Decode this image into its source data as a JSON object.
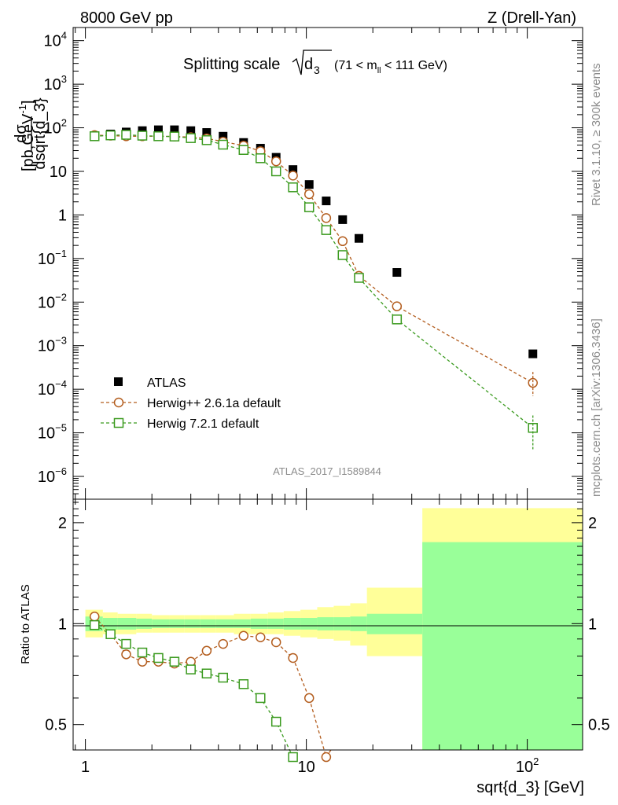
{
  "header": {
    "left": "8000 GeV pp",
    "right": "Z (Drell-Yan)"
  },
  "side_text": {
    "rivet": "Rivet 3.1.10, ≥ 300k events",
    "mcplots": "mcplots.cern.ch [arXiv:1306.3436]"
  },
  "chart_data": {
    "type": "scatter",
    "title": "Splitting scale √d₃ (71 < m_ll < 111 GeV)",
    "title_parts": {
      "main": "Splitting scale",
      "symbol": "d",
      "subscript": "3",
      "range": "(71 < m",
      "range_sub": "ll",
      "range_end": " < 111 GeV)"
    },
    "analysis_id": "ATLAS_2017_I1589844",
    "xlabel": "sqrt{d_3} [GeV]",
    "ylabel": "dσ / dsqrt{d_3} [pb,GeV⁻¹]",
    "ylabel_parts": {
      "num": "dσ",
      "den": "dsqrt{d_3}",
      "unit": "[pb,GeV",
      "unit_sup": "-1",
      "unit_end": "]"
    },
    "ratio_ylabel": "Ratio to ATLAS",
    "x_scale": "log",
    "xlim": [
      0.88,
      178
    ],
    "ylim": [
      3e-07,
      20000.0
    ],
    "ratio_ylim": [
      0.42,
      2.35
    ],
    "x_ticks": [
      {
        "value": 1,
        "label": "1"
      },
      {
        "value": 10,
        "label": "10"
      },
      {
        "value": 100,
        "label": "10",
        "sup": "2"
      }
    ],
    "y_ticks": [
      {
        "value": 1e-06,
        "label": "10",
        "sup": "−6"
      },
      {
        "value": 1e-05,
        "label": "10",
        "sup": "−5"
      },
      {
        "value": 0.0001,
        "label": "10",
        "sup": "−4"
      },
      {
        "value": 0.001,
        "label": "10",
        "sup": "−3"
      },
      {
        "value": 0.01,
        "label": "10",
        "sup": "−2"
      },
      {
        "value": 0.1,
        "label": "10",
        "sup": "−1"
      },
      {
        "value": 1,
        "label": "1"
      },
      {
        "value": 10,
        "label": "10"
      },
      {
        "value": 100,
        "label": "10",
        "sup": "2"
      },
      {
        "value": 1000,
        "label": "10",
        "sup": "3"
      },
      {
        "value": 10000,
        "label": "10",
        "sup": "4"
      }
    ],
    "ratio_ticks": [
      {
        "value": 0.5,
        "label": "0.5"
      },
      {
        "value": 1,
        "label": "1"
      },
      {
        "value": 2,
        "label": "2"
      }
    ],
    "legend": {
      "placement": "lower-left"
    },
    "series": [
      {
        "name": "ATLAS",
        "marker": "filled-square",
        "color": "#000000",
        "x": [
          1.1,
          1.3,
          1.53,
          1.81,
          2.14,
          2.53,
          3.0,
          3.54,
          4.2,
          5.2,
          6.2,
          7.3,
          8.7,
          10.3,
          12.3,
          14.6,
          17.3,
          25.7,
          106
        ],
        "y": [
          66,
          72,
          80,
          86,
          90,
          90,
          86,
          78,
          64,
          46,
          34,
          21,
          11,
          5.0,
          2.1,
          0.78,
          0.29,
          0.048,
          0.00065
        ],
        "ratio_band": [
          {
            "x0": 1.0,
            "x1": 1.2,
            "inner_lo": 0.95,
            "inner_hi": 1.05,
            "outer_lo": 0.91,
            "outer_hi": 1.1
          },
          {
            "x0": 1.2,
            "x1": 1.4,
            "inner_lo": 0.96,
            "inner_hi": 1.04,
            "outer_lo": 0.93,
            "outer_hi": 1.08
          },
          {
            "x0": 1.4,
            "x1": 1.7,
            "inner_lo": 0.96,
            "inner_hi": 1.04,
            "outer_lo": 0.93,
            "outer_hi": 1.07
          },
          {
            "x0": 1.7,
            "x1": 2.0,
            "inner_lo": 0.965,
            "inner_hi": 1.035,
            "outer_lo": 0.94,
            "outer_hi": 1.07
          },
          {
            "x0": 2.0,
            "x1": 2.4,
            "inner_lo": 0.97,
            "inner_hi": 1.03,
            "outer_lo": 0.94,
            "outer_hi": 1.06
          },
          {
            "x0": 2.4,
            "x1": 2.8,
            "inner_lo": 0.97,
            "inner_hi": 1.03,
            "outer_lo": 0.94,
            "outer_hi": 1.06
          },
          {
            "x0": 2.8,
            "x1": 3.3,
            "inner_lo": 0.97,
            "inner_hi": 1.03,
            "outer_lo": 0.94,
            "outer_hi": 1.06
          },
          {
            "x0": 3.3,
            "x1": 3.9,
            "inner_lo": 0.97,
            "inner_hi": 1.03,
            "outer_lo": 0.94,
            "outer_hi": 1.06
          },
          {
            "x0": 3.9,
            "x1": 4.7,
            "inner_lo": 0.97,
            "inner_hi": 1.03,
            "outer_lo": 0.94,
            "outer_hi": 1.06
          },
          {
            "x0": 4.7,
            "x1": 5.6,
            "inner_lo": 0.97,
            "inner_hi": 1.03,
            "outer_lo": 0.93,
            "outer_hi": 1.07
          },
          {
            "x0": 5.6,
            "x1": 6.7,
            "inner_lo": 0.965,
            "inner_hi": 1.035,
            "outer_lo": 0.93,
            "outer_hi": 1.07
          },
          {
            "x0": 6.7,
            "x1": 7.9,
            "inner_lo": 0.965,
            "inner_hi": 1.035,
            "outer_lo": 0.93,
            "outer_hi": 1.08
          },
          {
            "x0": 7.9,
            "x1": 9.4,
            "inner_lo": 0.96,
            "inner_hi": 1.04,
            "outer_lo": 0.92,
            "outer_hi": 1.09
          },
          {
            "x0": 9.4,
            "x1": 11.2,
            "inner_lo": 0.96,
            "inner_hi": 1.04,
            "outer_lo": 0.91,
            "outer_hi": 1.1
          },
          {
            "x0": 11.2,
            "x1": 13.3,
            "inner_lo": 0.955,
            "inner_hi": 1.045,
            "outer_lo": 0.9,
            "outer_hi": 1.12
          },
          {
            "x0": 13.3,
            "x1": 15.8,
            "inner_lo": 0.955,
            "inner_hi": 1.045,
            "outer_lo": 0.89,
            "outer_hi": 1.13
          },
          {
            "x0": 15.8,
            "x1": 18.8,
            "inner_lo": 0.95,
            "inner_hi": 1.05,
            "outer_lo": 0.86,
            "outer_hi": 1.15
          },
          {
            "x0": 18.8,
            "x1": 33.5,
            "inner_lo": 0.93,
            "inner_hi": 1.07,
            "outer_lo": 0.8,
            "outer_hi": 1.28
          },
          {
            "x0": 33.5,
            "x1": 178,
            "inner_lo": 0.0,
            "inner_hi": 1.75,
            "outer_lo": 0.0,
            "outer_hi": 2.21
          }
        ]
      },
      {
        "name": "Herwig++ 2.6.1a default",
        "marker": "open-circle",
        "color": "#b35d1e",
        "x": [
          1.1,
          1.3,
          1.53,
          1.81,
          2.14,
          2.53,
          3.0,
          3.54,
          4.2,
          5.2,
          6.2,
          7.3,
          8.7,
          10.3,
          12.3,
          14.6,
          17.3,
          25.7,
          106
        ],
        "y": [
          68,
          66,
          64,
          64,
          64,
          63,
          61,
          57,
          48,
          39,
          29,
          17,
          8.0,
          3.0,
          0.85,
          0.25,
          0.04,
          0.008,
          0.00014
        ],
        "ratio": [
          1.05,
          0.93,
          0.81,
          0.77,
          0.77,
          0.76,
          0.77,
          0.83,
          0.87,
          0.92,
          0.91,
          0.88,
          0.79,
          0.6,
          0.4,
          null,
          null,
          null,
          null
        ]
      },
      {
        "name": "Herwig 7.2.1 default",
        "marker": "open-square",
        "color": "#3a9a1e",
        "x": [
          1.1,
          1.3,
          1.53,
          1.81,
          2.14,
          2.53,
          3.0,
          3.54,
          4.2,
          5.2,
          6.2,
          7.3,
          8.7,
          10.3,
          12.3,
          14.6,
          17.3,
          25.7,
          106
        ],
        "y": [
          64,
          67,
          69,
          66,
          64,
          63,
          58,
          52,
          41,
          31,
          20,
          10,
          4.3,
          1.5,
          0.45,
          0.12,
          0.036,
          0.004,
          1.3e-05
        ],
        "ratio": [
          0.99,
          0.93,
          0.87,
          0.82,
          0.79,
          0.77,
          0.73,
          0.71,
          0.69,
          0.66,
          0.6,
          0.51,
          0.4,
          null,
          null,
          null,
          null,
          null,
          null
        ]
      }
    ]
  }
}
